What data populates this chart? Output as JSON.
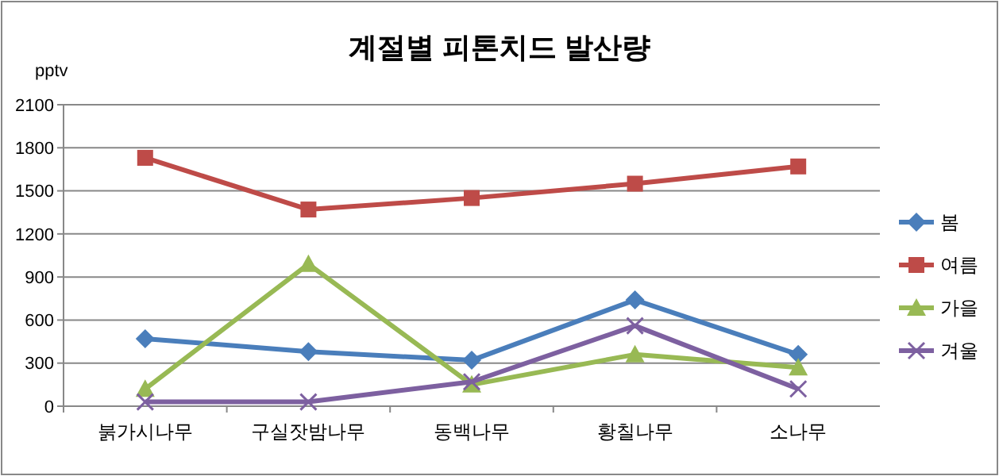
{
  "chart_data": {
    "type": "line",
    "title": "계절별 피톤치드 발산량",
    "ylabel": "pptv",
    "categories": [
      "붉가시나무",
      "구실잣밤나무",
      "동백나무",
      "황칠나무",
      "소나무"
    ],
    "series": [
      {
        "name": "봄",
        "color": "#4a7ebb",
        "marker": "diamond",
        "values": [
          470,
          380,
          320,
          740,
          360
        ]
      },
      {
        "name": "여름",
        "color": "#be4b48",
        "marker": "square",
        "values": [
          1730,
          1370,
          1450,
          1550,
          1670
        ]
      },
      {
        "name": "가을",
        "color": "#98b954",
        "marker": "triangle",
        "values": [
          120,
          990,
          150,
          360,
          270
        ]
      },
      {
        "name": "겨울",
        "color": "#7d60a0",
        "marker": "cross",
        "values": [
          30,
          30,
          170,
          560,
          120
        ]
      }
    ],
    "ylim": [
      0,
      2100
    ],
    "yticks": [
      0,
      300,
      600,
      900,
      1200,
      1500,
      1800,
      2100
    ],
    "grid": "y",
    "legend": "right"
  }
}
